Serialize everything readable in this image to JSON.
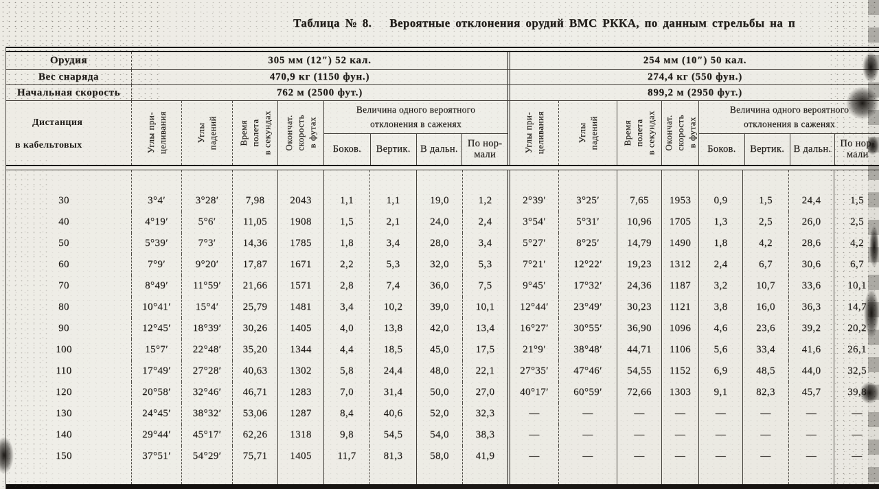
{
  "title": {
    "label": "Таблица  №  8.",
    "text": "Вероятные  отклонения  орудий  ВМС  РККА,  по  данным  стрельбы  на  п"
  },
  "meta": {
    "rows": [
      {
        "label": "Орудия",
        "left": "305 мм (12″) 52 кал.",
        "right": "254 мм (10″) 50 кал."
      },
      {
        "label": "Вес снаряда",
        "left": "470,9 кг (1150 фун.)",
        "right": "274,4 кг (550 фун.)"
      },
      {
        "label": "Начальная скорость",
        "left": "762 м (2500 фут.)",
        "right": "899,2 м (2950 фут.)"
      }
    ]
  },
  "headers": {
    "distance_line1": "Дистанция",
    "distance_line2": "в кабельтовых",
    "angles_aim": "Углы при-\nцеливания",
    "angles_fall": "Углы\nпадений",
    "flight_time": "Время\nполета\nв секундах",
    "final_speed": "Окончат.\nскорость\nв футах",
    "deviation_title": "Величина одного вероятного\nотклонения в саженях",
    "dev_lateral": "Боков.",
    "dev_vertical": "Вертик.",
    "dev_range": "В дальн.",
    "dev_normal": "По нор-\nмали"
  },
  "rows": [
    {
      "d": "30",
      "l": [
        "3°4′",
        "3°28′",
        "7,98",
        "2043",
        "1,1",
        "1,1",
        "19,0",
        "1,2"
      ],
      "r": [
        "2°39′",
        "3°25′",
        "7,65",
        "1953",
        "0,9",
        "1,5",
        "24,4",
        "1,5"
      ]
    },
    {
      "d": "40",
      "l": [
        "4°19′",
        "5°6′",
        "11,05",
        "1908",
        "1,5",
        "2,1",
        "24,0",
        "2,4"
      ],
      "r": [
        "3°54′",
        "5°31′",
        "10,96",
        "1705",
        "1,3",
        "2,5",
        "26,0",
        "2,5"
      ]
    },
    {
      "d": "50",
      "l": [
        "5°39′",
        "7°3′",
        "14,36",
        "1785",
        "1,8",
        "3,4",
        "28,0",
        "3,4"
      ],
      "r": [
        "5°27′",
        "8°25′",
        "14,79",
        "1490",
        "1,8",
        "4,2",
        "28,6",
        "4,2"
      ]
    },
    {
      "d": "60",
      "l": [
        "7°9′",
        "9°20′",
        "17,87",
        "1671",
        "2,2",
        "5,3",
        "32,0",
        "5,3"
      ],
      "r": [
        "7°21′",
        "12°22′",
        "19,23",
        "1312",
        "2,4",
        "6,7",
        "30,6",
        "6,7"
      ]
    },
    {
      "d": "70",
      "l": [
        "8°49′",
        "11°59′",
        "21,66",
        "1571",
        "2,8",
        "7,4",
        "36,0",
        "7,5"
      ],
      "r": [
        "9°45′",
        "17°32′",
        "24,36",
        "1187",
        "3,2",
        "10,7",
        "33,6",
        "10,1"
      ]
    },
    {
      "d": "80",
      "l": [
        "10°41′",
        "15°4′",
        "25,79",
        "1481",
        "3,4",
        "10,2",
        "39,0",
        "10,1"
      ],
      "r": [
        "12°44′",
        "23°49′",
        "30,23",
        "1121",
        "3,8",
        "16,0",
        "36,3",
        "14,7"
      ]
    },
    {
      "d": "90",
      "l": [
        "12°45′",
        "18°39′",
        "30,26",
        "1405",
        "4,0",
        "13,8",
        "42,0",
        "13,4"
      ],
      "r": [
        "16°27′",
        "30°55′",
        "36,90",
        "1096",
        "4,6",
        "23,6",
        "39,2",
        "20,2"
      ]
    },
    {
      "d": "100",
      "l": [
        "15°7′",
        "22°48′",
        "35,20",
        "1344",
        "4,4",
        "18,5",
        "45,0",
        "17,5"
      ],
      "r": [
        "21°9′",
        "38°48′",
        "44,71",
        "1106",
        "5,6",
        "33,4",
        "41,6",
        "26,1"
      ]
    },
    {
      "d": "110",
      "l": [
        "17°49′",
        "27°28′",
        "40,63",
        "1302",
        "5,8",
        "24,4",
        "48,0",
        "22,1"
      ],
      "r": [
        "27°35′",
        "47°46′",
        "54,55",
        "1152",
        "6,9",
        "48,5",
        "44,0",
        "32,5"
      ]
    },
    {
      "d": "120",
      "l": [
        "20°58′",
        "32°46′",
        "46,71",
        "1283",
        "7,0",
        "31,4",
        "50,0",
        "27,0"
      ],
      "r": [
        "40°17′",
        "60°59′",
        "72,66",
        "1303",
        "9,1",
        "82,3",
        "45,7",
        "39,8"
      ]
    },
    {
      "d": "130",
      "l": [
        "24°45′",
        "38°32′",
        "53,06",
        "1287",
        "8,4",
        "40,6",
        "52,0",
        "32,3"
      ],
      "r": [
        "—",
        "—",
        "—",
        "—",
        "—",
        "—",
        "—",
        "—"
      ]
    },
    {
      "d": "140",
      "l": [
        "29°44′",
        "45°17′",
        "62,26",
        "1318",
        "9,8",
        "54,5",
        "54,0",
        "38,3"
      ],
      "r": [
        "—",
        "—",
        "—",
        "—",
        "—",
        "—",
        "—",
        "—"
      ]
    },
    {
      "d": "150",
      "l": [
        "37°51′",
        "54°29′",
        "75,71",
        "1405",
        "11,7",
        "81,3",
        "58,0",
        "41,9"
      ],
      "r": [
        "—",
        "—",
        "—",
        "—",
        "—",
        "—",
        "—",
        "—"
      ]
    }
  ],
  "colors": {
    "paper": "#edebe4",
    "ink": "#1c1916"
  }
}
